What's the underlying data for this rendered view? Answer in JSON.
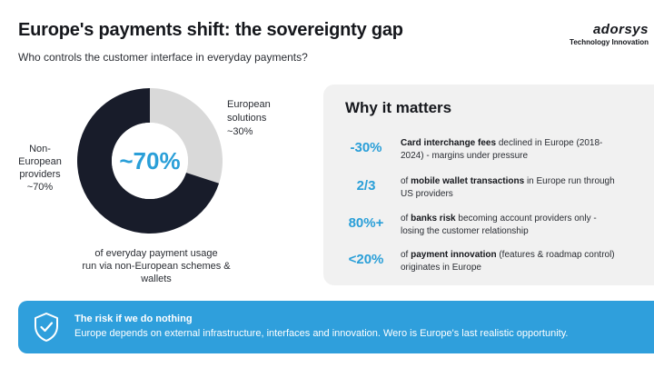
{
  "header": {
    "title": "Europe's payments shift: the sovereignty gap",
    "subtitle": "Who controls the customer interface in everyday payments?"
  },
  "brand": {
    "logo_text": "adorsys",
    "tagline": "Technology Innovation"
  },
  "chart_data": {
    "type": "pie",
    "categories": [
      "Non-European providers",
      "European solutions"
    ],
    "values": [
      70,
      30
    ],
    "colors": [
      "#181c2a",
      "#d9d9d9"
    ],
    "center_label": "~70%",
    "labels": {
      "european": [
        "European",
        "solutions",
        "~30%"
      ],
      "non_european": [
        "Non-",
        "European",
        "providers",
        "~70%"
      ]
    },
    "caption": [
      "of everyday payment usage",
      "run via non-European schemes &",
      "wallets"
    ]
  },
  "panel": {
    "title": "Why it matters",
    "items": [
      {
        "value": "-30%",
        "bold": "Card interchange fees",
        "rest": " declined in Europe (2018-",
        "line2": "2024) - margins under pressure",
        "prefix": ""
      },
      {
        "value": "2/3",
        "prefix": "of ",
        "bold": "mobile wallet transactions",
        "rest": " in Europe run through",
        "line2": "US providers"
      },
      {
        "value": "80%+",
        "prefix": "of ",
        "bold": "banks risk",
        "rest": " becoming account providers only -",
        "line2": "losing the customer relationship"
      },
      {
        "value": "<20%",
        "prefix": "of ",
        "bold": "payment innovation",
        "rest": " (features & roadmap control)",
        "line2": "originates in Europe"
      }
    ]
  },
  "banner": {
    "icon": "shield-check-icon",
    "title": "The risk if we do nothing",
    "text": "Europe depends on external infrastructure, interfaces and innovation. Wero is Europe's last realistic opportunity."
  }
}
